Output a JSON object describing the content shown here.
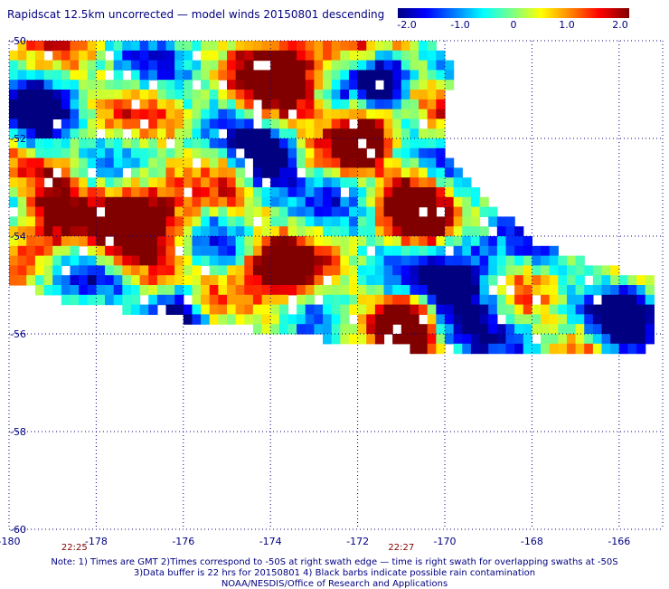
{
  "title": "Rapidscat 12.5km uncorrected — model winds 20150801 descending",
  "colorbar": {
    "ticks": [
      "-2.0",
      "-1.0",
      "0",
      "1.0",
      "2.0"
    ],
    "tick_values": [
      -2.0,
      -1.0,
      0,
      1.0,
      2.0
    ],
    "range": [
      -2.0,
      2.0
    ],
    "colors": [
      "#000080",
      "#0000ff",
      "#0080ff",
      "#00ffff",
      "#80ff80",
      "#ffff00",
      "#ff8000",
      "#ff0000",
      "#800000"
    ]
  },
  "axes": {
    "lon_labels": [
      "-180",
      "-178",
      "-176",
      "-174",
      "-172",
      "-170",
      "-168",
      "-166"
    ],
    "lon_values": [
      -180,
      -178,
      -176,
      -174,
      -172,
      -170,
      -168,
      -166
    ],
    "lat_labels": [
      "-50",
      "-52",
      "-54",
      "-56",
      "-58",
      "-60"
    ],
    "lat_values": [
      -50,
      -52,
      -54,
      -56,
      -58,
      -60
    ],
    "lon_range": [
      -180,
      -165
    ],
    "lat_range": [
      -60,
      -50
    ],
    "grid": "dotted"
  },
  "time_labels": [
    {
      "text": "22:25",
      "lon": -178.5
    },
    {
      "text": "22:27",
      "lon": -171.0
    }
  ],
  "notes": [
    "Note: 1) Times are GMT 2)Times correspond to -50S at right swath edge — time is right swath for overlapping swaths at -50S",
    "3)Data buffer is 22 hrs for 20150801 4) Black barbs indicate possible rain contamination",
    "NOAA/NESDIS/Office of Research and Applications"
  ],
  "swath": {
    "cell_deg": 0.2,
    "rows": [
      {
        "lat": -50.0,
        "lon_start": -180.0,
        "lon_end": -170.2
      },
      {
        "lat": -50.4,
        "lon_start": -180.0,
        "lon_end": -169.8
      },
      {
        "lat": -51.0,
        "lon_start": -180.0,
        "lon_end": -170.0
      },
      {
        "lat": -51.6,
        "lon_start": -180.0,
        "lon_end": -170.0
      },
      {
        "lat": -52.2,
        "lon_start": -180.0,
        "lon_end": -170.0
      },
      {
        "lat": -52.8,
        "lon_start": -180.0,
        "lon_end": -169.4
      },
      {
        "lat": -53.4,
        "lon_start": -180.0,
        "lon_end": -168.8
      },
      {
        "lat": -54.0,
        "lon_start": -180.0,
        "lon_end": -168.0
      },
      {
        "lat": -54.4,
        "lon_start": -180.0,
        "lon_end": -166.8
      },
      {
        "lat": -54.8,
        "lon_start": -180.0,
        "lon_end": -165.2
      },
      {
        "lat": -55.2,
        "lon_start": -178.8,
        "lon_end": -165.2
      },
      {
        "lat": -55.6,
        "lon_start": -176.0,
        "lon_end": -165.2
      },
      {
        "lat": -56.0,
        "lon_start": -172.8,
        "lon_end": -165.2
      },
      {
        "lat": -56.4,
        "lon_start": -168.8,
        "lon_end": -165.8
      }
    ],
    "hot_spots": [
      {
        "lon": -179.2,
        "lat": -53.4,
        "r": 1.2
      },
      {
        "lon": -177.0,
        "lat": -53.6,
        "r": 1.6
      },
      {
        "lon": -173.8,
        "lat": -50.6,
        "r": 1.4
      },
      {
        "lon": -174.0,
        "lat": -54.8,
        "r": 1.2
      },
      {
        "lon": -170.8,
        "lat": -53.2,
        "r": 1.1
      },
      {
        "lon": -171.0,
        "lat": -55.8,
        "r": 0.9
      },
      {
        "lon": -172.0,
        "lat": -51.8,
        "r": 1.0
      }
    ],
    "cold_spots": [
      {
        "lon": -179.5,
        "lat": -51.6,
        "r": 1.0
      },
      {
        "lon": -174.2,
        "lat": -52.4,
        "r": 1.0
      },
      {
        "lon": -169.6,
        "lat": -55.0,
        "r": 1.3
      },
      {
        "lon": -166.0,
        "lat": -55.8,
        "r": 1.0
      },
      {
        "lon": -176.2,
        "lat": -55.4,
        "r": 0.9
      },
      {
        "lon": -171.5,
        "lat": -50.6,
        "r": 0.8
      }
    ]
  }
}
